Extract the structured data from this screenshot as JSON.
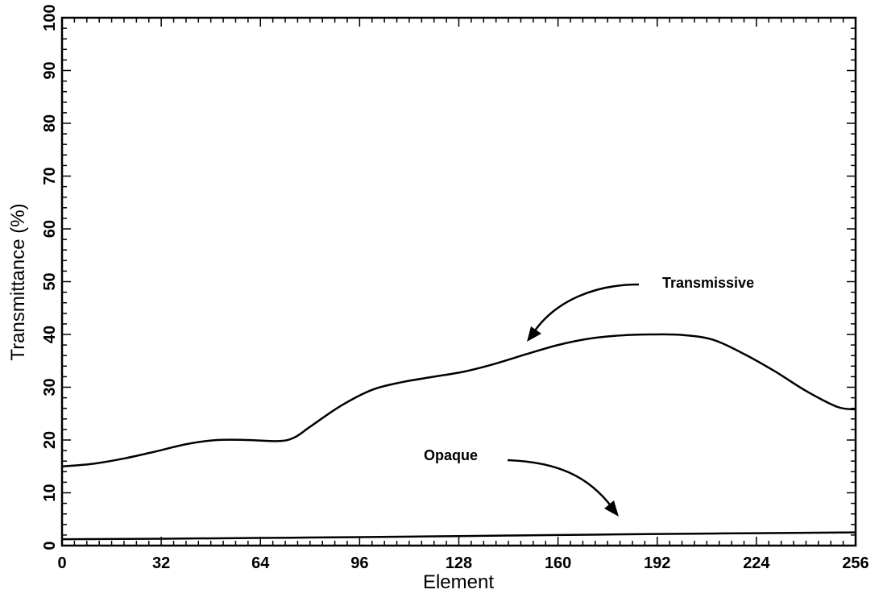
{
  "chart_data": {
    "type": "line",
    "xlabel": "Element",
    "ylabel": "Transmittance (%)",
    "xlim": [
      0,
      256
    ],
    "ylim": [
      0,
      100
    ],
    "xticks": [
      0,
      32,
      64,
      96,
      128,
      160,
      192,
      224,
      256
    ],
    "yticks": [
      0,
      10,
      20,
      30,
      40,
      50,
      60,
      70,
      80,
      90,
      100
    ],
    "grid": false,
    "series": [
      {
        "name": "Transmissive",
        "x": [
          0,
          10,
          20,
          30,
          40,
          50,
          60,
          70,
          75,
          80,
          90,
          100,
          110,
          120,
          130,
          140,
          150,
          160,
          170,
          180,
          190,
          200,
          210,
          220,
          230,
          240,
          250,
          256
        ],
        "y": [
          15,
          15.5,
          16.5,
          17.8,
          19.2,
          20,
          20,
          19.8,
          20.5,
          22.5,
          26.5,
          29.5,
          31,
          32,
          33,
          34.5,
          36.3,
          38,
          39.2,
          39.8,
          40,
          39.9,
          39,
          36.3,
          33,
          29.3,
          26.3,
          25.8
        ]
      },
      {
        "name": "Opaque",
        "x": [
          0,
          32,
          64,
          96,
          128,
          160,
          192,
          224,
          256
        ],
        "y": [
          1.2,
          1.3,
          1.45,
          1.6,
          1.8,
          2.0,
          2.2,
          2.35,
          2.5
        ]
      }
    ],
    "annotations": [
      {
        "text": "Transmissive"
      },
      {
        "text": "Opaque"
      }
    ]
  }
}
